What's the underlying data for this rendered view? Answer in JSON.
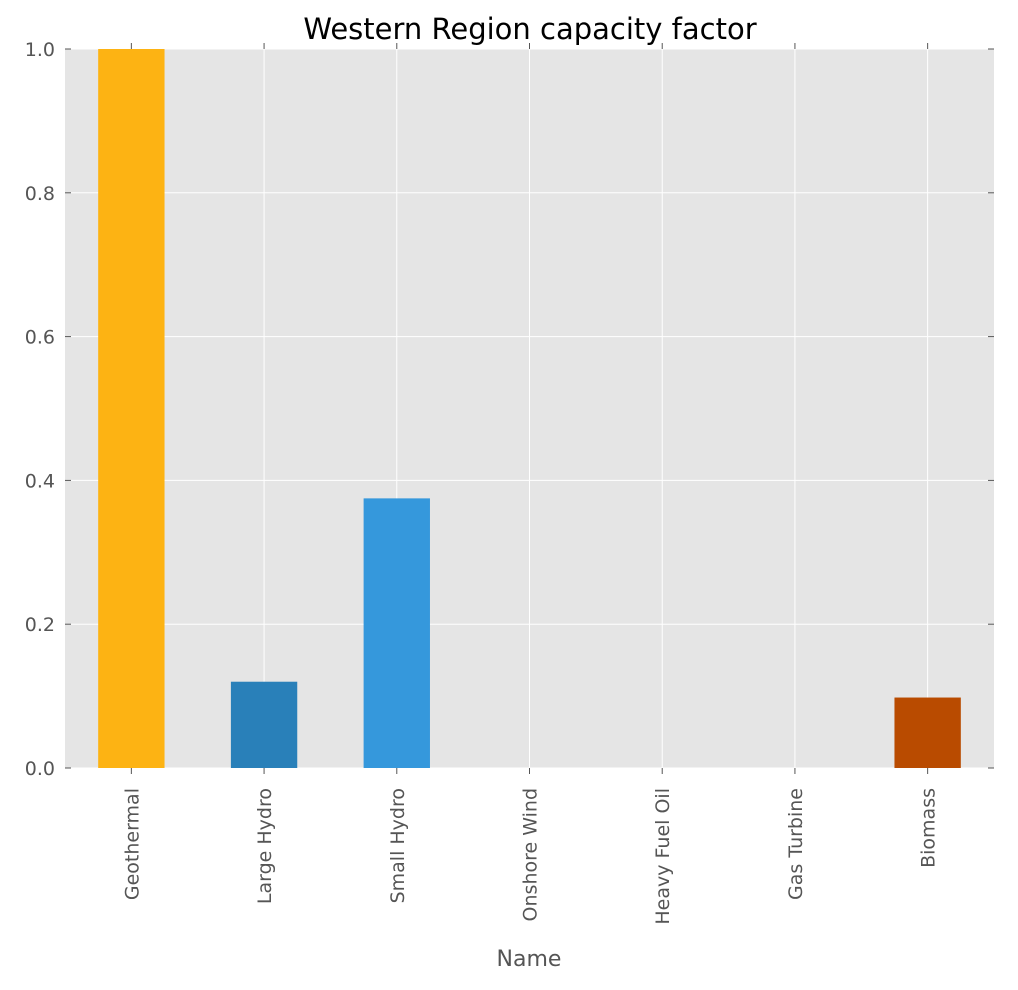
{
  "chart_data": {
    "type": "bar",
    "title": "Western Region capacity factor",
    "xlabel": "Name",
    "ylabel": "",
    "categories": [
      "Geothermal",
      "Large Hydro",
      "Small Hydro",
      "Onshore Wind",
      "Heavy Fuel Oil",
      "Gas Turbine",
      "Biomass"
    ],
    "values": [
      1.0,
      0.12,
      0.375,
      0.0,
      0.0,
      0.0,
      0.098
    ],
    "colors": [
      "#fdb313",
      "#2980b9",
      "#3598dc",
      "#bdc3c7",
      "#7f8c8d",
      "#95a5a6",
      "#b94b00"
    ],
    "ylim": [
      0.0,
      1.0
    ],
    "yticks": [
      0.0,
      0.2,
      0.4,
      0.6,
      0.8,
      1.0
    ],
    "ytick_labels": [
      "0.0",
      "0.2",
      "0.4",
      "0.6",
      "0.8",
      "1.0"
    ],
    "grid": true,
    "background": "#e5e5e5",
    "legend": "none"
  }
}
